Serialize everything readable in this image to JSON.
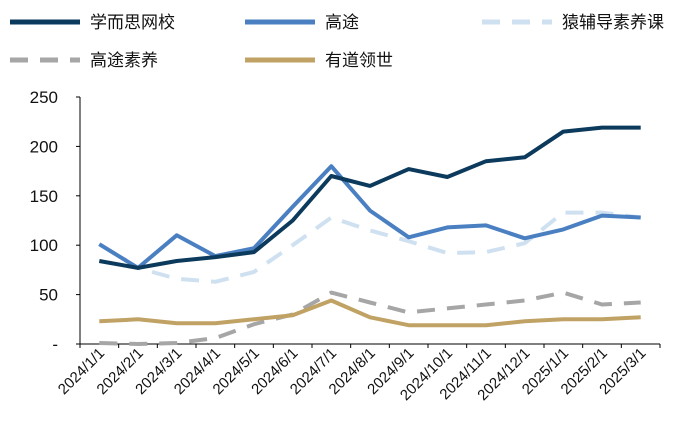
{
  "chart_data": {
    "type": "line",
    "title": "",
    "xlabel": "",
    "ylabel": "",
    "ylim": [
      0,
      250
    ],
    "y_ticks": [
      {
        "value": 0,
        "label": "-"
      },
      {
        "value": 50,
        "label": "50"
      },
      {
        "value": 100,
        "label": "100"
      },
      {
        "value": 150,
        "label": "150"
      },
      {
        "value": 200,
        "label": "200"
      },
      {
        "value": 250,
        "label": "250"
      }
    ],
    "grid": false,
    "legend_position": "top",
    "categories": [
      "2024/1/1",
      "2024/2/1",
      "2024/3/1",
      "2024/4/1",
      "2024/5/1",
      "2024/6/1",
      "2024/7/1",
      "2024/8/1",
      "2024/9/1",
      "2024/10/1",
      "2024/11/1",
      "2024/12/1",
      "2025/1/1",
      "2025/2/1",
      "2025/3/1"
    ],
    "series": [
      {
        "name": "学而思网校",
        "color": "#0b3a5c",
        "style": "solid",
        "values": [
          84,
          77,
          84,
          88,
          93,
          125,
          170,
          160,
          177,
          169,
          185,
          189,
          215,
          219,
          219
        ]
      },
      {
        "name": "高途",
        "color": "#4a7fc1",
        "style": "solid",
        "values": [
          101,
          77,
          110,
          89,
          97,
          139,
          180,
          135,
          108,
          118,
          120,
          107,
          116,
          130,
          128
        ]
      },
      {
        "name": "猿辅导素养课",
        "color": "#cfe1f0",
        "style": "dashed",
        "values": [
          101,
          77,
          66,
          63,
          73,
          100,
          128,
          115,
          104,
          92,
          93,
          102,
          133,
          133,
          128
        ]
      },
      {
        "name": "高途素养",
        "color": "#a6a6a6",
        "style": "dashed",
        "values": [
          1,
          0,
          1,
          6,
          20,
          30,
          52,
          42,
          32,
          36,
          40,
          44,
          52,
          40,
          42
        ]
      },
      {
        "name": "有道领世",
        "color": "#c0a264",
        "style": "solid",
        "values": [
          23,
          25,
          21,
          21,
          25,
          29,
          44,
          27,
          19,
          19,
          19,
          23,
          25,
          25,
          27
        ]
      }
    ]
  }
}
